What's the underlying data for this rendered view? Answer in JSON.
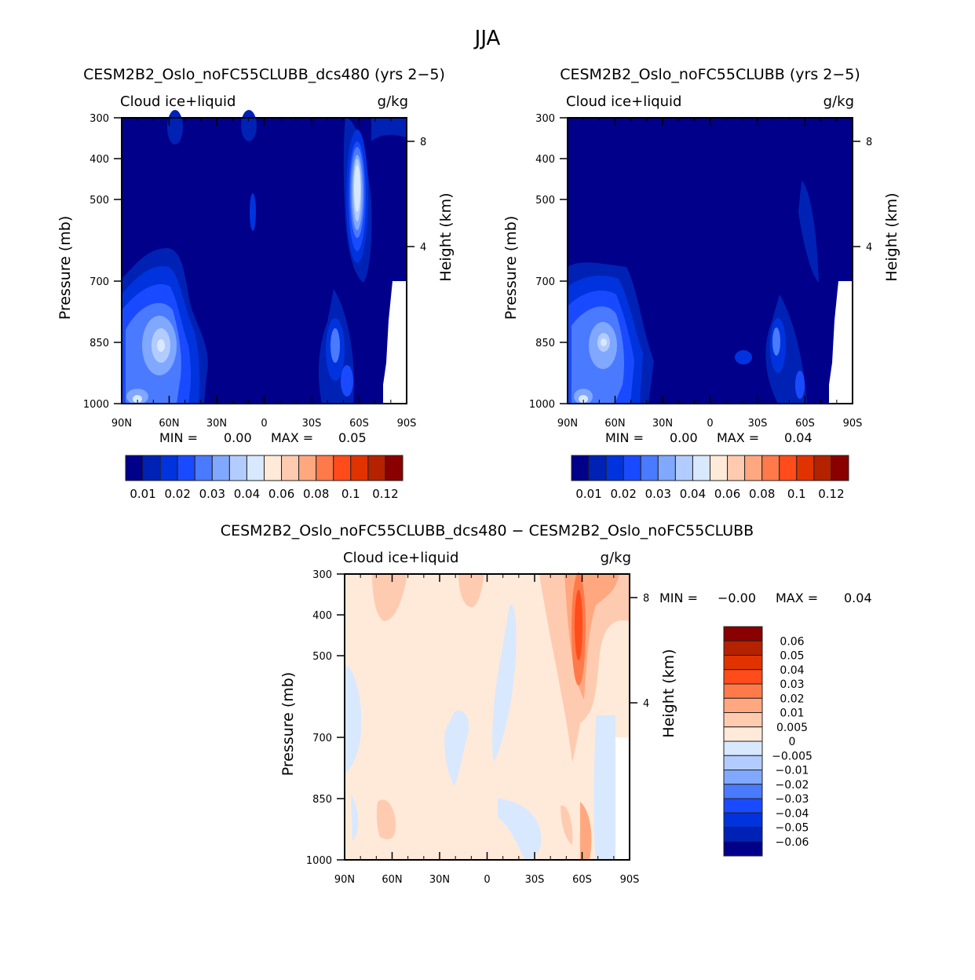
{
  "main_title": "JJA",
  "chart_data": [
    {
      "type": "heatmap",
      "title": "CESM2B2_Oslo_noFC55CLUBB_dcs480 (yrs 2−5)",
      "variable": "Cloud ice+liquid",
      "units": "g/kg",
      "ylabel": "Pressure (mb)",
      "ylabel_right": "Height (km)",
      "xticks": [
        "90N",
        "60N",
        "30N",
        "0",
        "30S",
        "60S",
        "90S"
      ],
      "yticks": [
        "300",
        "400",
        "500",
        "700",
        "850",
        "1000"
      ],
      "yticks_right": [
        "8",
        "4"
      ],
      "ylim": [
        1000,
        300
      ],
      "stats": {
        "min_label": "MIN =",
        "min": "0.00",
        "max_label": "MAX =",
        "max": "0.05"
      },
      "colorbar": {
        "colors": [
          "#00008a",
          "#0022b4",
          "#0033dd",
          "#1a4aff",
          "#4a7aff",
          "#80a8ff",
          "#b3ccff",
          "#d8e8ff",
          "#ffeada",
          "#ffcbb0",
          "#ffa880",
          "#ff7a4a",
          "#ff4c1a",
          "#e03300",
          "#b42200",
          "#8a0000"
        ],
        "labels": [
          "0.01",
          "0.02",
          "0.03",
          "0.04",
          "0.06",
          "0.08",
          "0.1",
          "0.12"
        ]
      }
    },
    {
      "type": "heatmap",
      "title": "CESM2B2_Oslo_noFC55CLUBB (yrs 2−5)",
      "variable": "Cloud ice+liquid",
      "units": "g/kg",
      "ylabel": "Pressure (mb)",
      "ylabel_right": "Height (km)",
      "xticks": [
        "90N",
        "60N",
        "30N",
        "0",
        "30S",
        "60S",
        "90S"
      ],
      "yticks": [
        "300",
        "400",
        "500",
        "700",
        "850",
        "1000"
      ],
      "yticks_right": [
        "8",
        "4"
      ],
      "ylim": [
        1000,
        300
      ],
      "stats": {
        "min_label": "MIN =",
        "min": "0.00",
        "max_label": "MAX =",
        "max": "0.04"
      },
      "colorbar": {
        "colors": [
          "#00008a",
          "#0022b4",
          "#0033dd",
          "#1a4aff",
          "#4a7aff",
          "#80a8ff",
          "#b3ccff",
          "#d8e8ff",
          "#ffeada",
          "#ffcbb0",
          "#ffa880",
          "#ff7a4a",
          "#ff4c1a",
          "#e03300",
          "#b42200",
          "#8a0000"
        ],
        "labels": [
          "0.01",
          "0.02",
          "0.03",
          "0.04",
          "0.06",
          "0.08",
          "0.1",
          "0.12"
        ]
      }
    },
    {
      "type": "heatmap",
      "title": "CESM2B2_Oslo_noFC55CLUBB_dcs480 − CESM2B2_Oslo_noFC55CLUBB",
      "variable": "Cloud ice+liquid",
      "units": "g/kg",
      "ylabel": "Pressure (mb)",
      "ylabel_right": "Height (km)",
      "xticks": [
        "90N",
        "60N",
        "30N",
        "0",
        "30S",
        "60S",
        "90S"
      ],
      "yticks": [
        "300",
        "400",
        "500",
        "700",
        "850",
        "1000"
      ],
      "yticks_right": [
        "8",
        "4"
      ],
      "ylim": [
        1000,
        300
      ],
      "stats": {
        "min_label": "MIN =",
        "min": "−0.00",
        "max_label": "MAX =",
        "max": "0.04"
      },
      "colorbar": {
        "colors": [
          "#8a0000",
          "#b42200",
          "#e03300",
          "#ff4c1a",
          "#ff7a4a",
          "#ffa880",
          "#ffcbb0",
          "#ffeada",
          "#d8e8ff",
          "#b3ccff",
          "#80a8ff",
          "#4a7aff",
          "#1a4aff",
          "#0033dd",
          "#0022b4",
          "#00008a"
        ],
        "labels": [
          "0.06",
          "0.05",
          "0.04",
          "0.03",
          "0.02",
          "0.01",
          "0.005",
          "0",
          "−0.005",
          "−0.01",
          "−0.02",
          "−0.03",
          "−0.04",
          "−0.05",
          "−0.06"
        ]
      }
    }
  ]
}
